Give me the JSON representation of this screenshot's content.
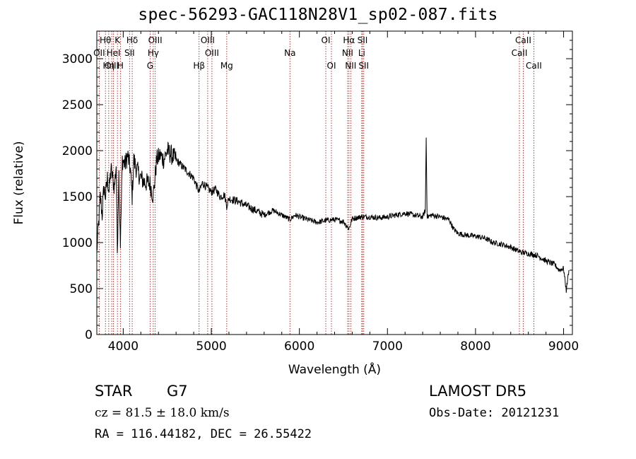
{
  "chart_data": {
    "type": "line",
    "title": "spec-56293-GAC118N28V1_sp02-087.fits",
    "xlabel": "Wavelength (Å)",
    "ylabel": "Flux (relative)",
    "xlim": [
      3700,
      9100
    ],
    "ylim": [
      0,
      3300
    ],
    "xticks": [
      4000,
      5000,
      6000,
      7000,
      8000,
      9000
    ],
    "yticks": [
      0,
      500,
      1000,
      1500,
      2000,
      2500,
      3000
    ],
    "grid": false,
    "line_color": "#000000",
    "marker_color": "#b22222",
    "series": [
      {
        "x": [
          3700,
          3720,
          3740,
          3760,
          3780,
          3800,
          3820,
          3840,
          3860,
          3880,
          3900,
          3920,
          3933,
          3950,
          3968,
          3990,
          4020,
          4050,
          4080,
          4101,
          4120,
          4150,
          4200,
          4250,
          4300,
          4340,
          4380,
          4420,
          4460,
          4500,
          4550,
          4600,
          4650,
          4700,
          4750,
          4800,
          4861,
          4900,
          4950,
          5000,
          5050,
          5100,
          5150,
          5175,
          5200,
          5300,
          5400,
          5500,
          5600,
          5700,
          5800,
          5893,
          5950,
          6000,
          6100,
          6200,
          6300,
          6400,
          6500,
          6563,
          6600,
          6700,
          6800,
          6900,
          7000,
          7100,
          7200,
          7300,
          7400,
          7430,
          7440,
          7450,
          7460,
          7500,
          7600,
          7700,
          7750,
          7800,
          7900,
          8000,
          8100,
          8200,
          8300,
          8400,
          8500,
          8600,
          8700,
          8800,
          8900,
          8950,
          9000,
          9030,
          9060
        ],
        "y": [
          900,
          1200,
          1500,
          1300,
          1600,
          1500,
          1700,
          1550,
          1800,
          1700,
          1600,
          1850,
          900,
          1750,
          1000,
          1900,
          1850,
          1950,
          1800,
          1500,
          1900,
          1800,
          1700,
          1650,
          1650,
          1500,
          1900,
          1950,
          1900,
          2000,
          1950,
          1900,
          1850,
          1800,
          1750,
          1700,
          1550,
          1650,
          1600,
          1550,
          1580,
          1500,
          1520,
          1400,
          1480,
          1450,
          1400,
          1350,
          1300,
          1350,
          1300,
          1250,
          1300,
          1280,
          1250,
          1220,
          1240,
          1250,
          1230,
          1150,
          1260,
          1280,
          1280,
          1270,
          1280,
          1300,
          1320,
          1300,
          1280,
          1350,
          2150,
          1300,
          1280,
          1300,
          1280,
          1250,
          1150,
          1100,
          1080,
          1070,
          1050,
          1000,
          980,
          950,
          900,
          880,
          860,
          800,
          760,
          700,
          720,
          480,
          700
        ]
      }
    ],
    "lines": [
      {
        "label": "Hθ",
        "x": 3798,
        "row": 0
      },
      {
        "label": "OII",
        "x": 3727,
        "row": 1
      },
      {
        "label": "OIII",
        "x": 3869,
        "row": 2
      },
      {
        "label": "Hη",
        "x": 3835,
        "row": 2
      },
      {
        "label": "HeI",
        "x": 3889,
        "row": 1
      },
      {
        "label": "K",
        "x": 3934,
        "row": 0
      },
      {
        "label": "H",
        "x": 3968,
        "row": 2
      },
      {
        "label": "Hδ",
        "x": 4102,
        "row": 0
      },
      {
        "label": "SII",
        "x": 4072,
        "row": 1
      },
      {
        "label": "OIII",
        "x": 4363,
        "row": 0
      },
      {
        "label": "Hγ",
        "x": 4341,
        "row": 1
      },
      {
        "label": "G",
        "x": 4305,
        "row": 2
      },
      {
        "label": "Hβ",
        "x": 4861,
        "row": 2
      },
      {
        "label": "OIII",
        "x": 4959,
        "row": 0
      },
      {
        "label": "OIII",
        "x": 5007,
        "row": 1
      },
      {
        "label": "Mg",
        "x": 5175,
        "row": 2
      },
      {
        "label": "Na",
        "x": 5893,
        "row": 1
      },
      {
        "label": "OI",
        "x": 6300,
        "row": 0
      },
      {
        "label": "OI",
        "x": 6364,
        "row": 2
      },
      {
        "label": "Hα",
        "x": 6563,
        "row": 0
      },
      {
        "label": "NII",
        "x": 6548,
        "row": 1
      },
      {
        "label": "NII",
        "x": 6583,
        "row": 2
      },
      {
        "label": "SII",
        "x": 6717,
        "row": 0
      },
      {
        "label": "Li",
        "x": 6708,
        "row": 1
      },
      {
        "label": "SII",
        "x": 6731,
        "row": 2
      },
      {
        "label": "CaII",
        "x": 8542,
        "row": 0
      },
      {
        "label": "CaII",
        "x": 8498,
        "row": 1
      },
      {
        "label": "CaII",
        "x": 8662,
        "row": 2
      }
    ]
  },
  "footer": {
    "class_label": "STAR",
    "subclass": "G7",
    "survey": "LAMOST DR5",
    "cz": "cz = 81.5 ± 18.0 km/s",
    "obs_date": "Obs-Date: 20121231",
    "coords": "RA = 116.44182, DEC =  26.55422"
  }
}
